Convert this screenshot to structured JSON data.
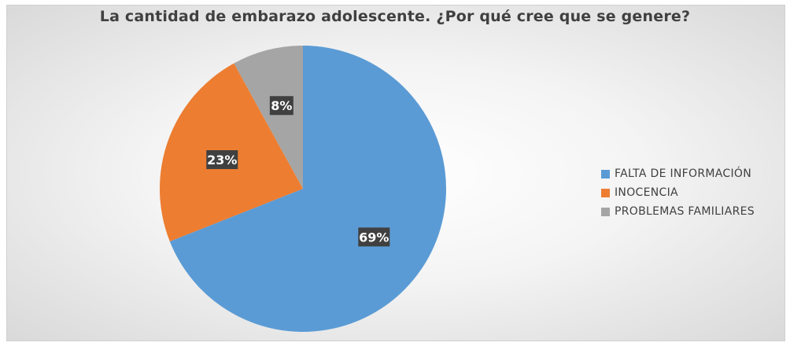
{
  "chart_data": {
    "type": "pie",
    "title": "La cantidad de embarazo adolescente. ¿Por qué cree que se genere?",
    "categories": [
      "FALTA DE INFORMACIÓN",
      "INOCENCIA",
      "PROBLEMAS FAMILIARES"
    ],
    "values": [
      69,
      23,
      8
    ],
    "data_labels": [
      "69%",
      "23%",
      "8%"
    ],
    "colors": [
      "#5B9BD5",
      "#ED7D31",
      "#A5A5A5"
    ],
    "legend_position": "right"
  }
}
